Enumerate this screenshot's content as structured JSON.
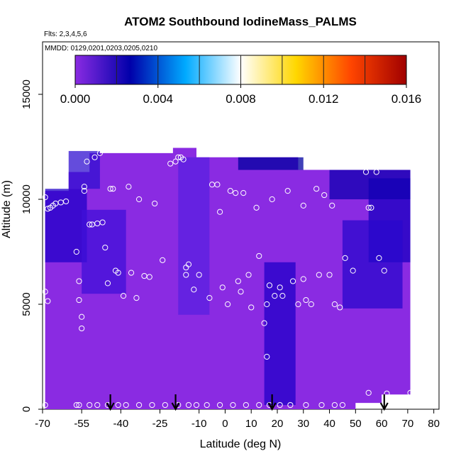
{
  "chart_data": {
    "type": "heatmap",
    "title": "ATOM2 Southbound IodineMass_PALMS",
    "flights_label": "Flts: 2,3,4,5,6",
    "dates_label": "MMDD: 0129,0201,0203,0205,0210",
    "xlabel": "Latitude (deg N)",
    "ylabel": "Altitude (m)",
    "xlim": [
      -70,
      82
    ],
    "ylim": [
      0,
      17500
    ],
    "x_ticks": [
      "-70",
      "-55",
      "-40",
      "-25",
      "-10",
      "0",
      "10",
      "20",
      "30",
      "40",
      "50",
      "60",
      "70",
      "80"
    ],
    "x_tick_values": [
      -70,
      -55,
      -40,
      -25,
      -10,
      0,
      10,
      20,
      30,
      40,
      50,
      60,
      70,
      80
    ],
    "y_ticks": [
      "0",
      "5000",
      "10000",
      "15000"
    ],
    "y_tick_values": [
      0,
      5000,
      10000,
      15000
    ],
    "colorbar": {
      "ticks": [
        "0.000",
        "0.004",
        "0.008",
        "0.012",
        "0.016"
      ],
      "tick_values": [
        0.0,
        0.004,
        0.008,
        0.012,
        0.016
      ],
      "range": [
        0.0,
        0.016
      ],
      "colors": [
        "#8a2be2",
        "#0000aa",
        "#00aaff",
        "#ffffff",
        "#ffd700",
        "#ff4500",
        "#a00000"
      ]
    },
    "field": {
      "background_color": "#8a2be2",
      "regions": [
        {
          "name": "south upper dark",
          "lat": [
            -69,
            -53
          ],
          "alt": [
            7000,
            10500
          ],
          "color": "#2000c8"
        },
        {
          "name": "south upper mid",
          "lat": [
            -60,
            -48
          ],
          "alt": [
            10500,
            12300
          ],
          "color": "#3010d0"
        },
        {
          "name": "south mid dark",
          "lat": [
            -55,
            -38
          ],
          "alt": [
            5500,
            9500
          ],
          "color": "#4010d8"
        },
        {
          "name": "tropical upper dark",
          "lat": [
            -18,
            -6
          ],
          "alt": [
            4500,
            12000
          ],
          "color": "#5820e0"
        },
        {
          "name": "equator dark band",
          "lat": [
            15,
            27
          ],
          "alt": [
            200,
            7000
          ],
          "color": "#2000c8"
        },
        {
          "name": "north upper dark",
          "lat": [
            55,
            71
          ],
          "alt": [
            7000,
            11000
          ],
          "color": "#1a00c0"
        },
        {
          "name": "north mid dark",
          "lat": [
            45,
            68
          ],
          "alt": [
            4800,
            9000
          ],
          "color": "#2a08cc"
        },
        {
          "name": "north top",
          "lat": [
            40,
            71
          ],
          "alt": [
            10000,
            11400
          ],
          "color": "#1000b0"
        },
        {
          "name": "subtropical top",
          "lat": [
            5,
            30
          ],
          "alt": [
            11400,
            12000
          ],
          "color": "#0000a0"
        }
      ]
    },
    "observations": [
      [
        -69,
        10100
      ],
      [
        -69,
        5600
      ],
      [
        -68,
        5150
      ],
      [
        -68,
        9550
      ],
      [
        -67,
        9600
      ],
      [
        -66,
        9700
      ],
      [
        -65,
        9800
      ],
      [
        -63,
        9850
      ],
      [
        -61,
        9900
      ],
      [
        -57,
        7500
      ],
      [
        -56,
        6100
      ],
      [
        -56,
        5200
      ],
      [
        -55,
        4400
      ],
      [
        -55,
        3850
      ],
      [
        -54,
        10600
      ],
      [
        -54,
        10400
      ],
      [
        -53,
        11800
      ],
      [
        -52,
        8800
      ],
      [
        -51,
        8800
      ],
      [
        -50,
        12000
      ],
      [
        -49,
        8850
      ],
      [
        -48,
        12200
      ],
      [
        -47,
        8900
      ],
      [
        -46,
        7700
      ],
      [
        -45,
        6000
      ],
      [
        -44,
        10500
      ],
      [
        -43,
        10500
      ],
      [
        -42,
        6600
      ],
      [
        -41,
        6500
      ],
      [
        -39,
        5400
      ],
      [
        -37,
        10600
      ],
      [
        -36,
        6500
      ],
      [
        -34,
        5300
      ],
      [
        -33,
        10000
      ],
      [
        -31,
        6350
      ],
      [
        -29,
        6300
      ],
      [
        -27,
        9800
      ],
      [
        -24,
        7100
      ],
      [
        -21,
        11700
      ],
      [
        -19,
        11800
      ],
      [
        -18,
        12000
      ],
      [
        -17,
        12000
      ],
      [
        -16,
        11900
      ],
      [
        -15,
        6400
      ],
      [
        -15,
        6750
      ],
      [
        -14,
        6900
      ],
      [
        -12,
        5700
      ],
      [
        -10,
        6400
      ],
      [
        -6,
        5300
      ],
      [
        -5,
        10700
      ],
      [
        -3,
        10700
      ],
      [
        -2,
        9400
      ],
      [
        -1,
        5800
      ],
      [
        1,
        5000
      ],
      [
        2,
        10400
      ],
      [
        4,
        10300
      ],
      [
        5,
        6100
      ],
      [
        6,
        5600
      ],
      [
        7,
        10300
      ],
      [
        9,
        6400
      ],
      [
        10,
        4850
      ],
      [
        12,
        9600
      ],
      [
        13,
        7300
      ],
      [
        15,
        4100
      ],
      [
        16,
        2500
      ],
      [
        16,
        5000
      ],
      [
        17,
        5900
      ],
      [
        18,
        10000
      ],
      [
        19,
        5400
      ],
      [
        21,
        5800
      ],
      [
        22,
        5400
      ],
      [
        24,
        10400
      ],
      [
        26,
        6100
      ],
      [
        28,
        5000
      ],
      [
        30,
        9700
      ],
      [
        30,
        6200
      ],
      [
        31,
        5200
      ],
      [
        33,
        5000
      ],
      [
        35,
        10500
      ],
      [
        36,
        6400
      ],
      [
        38,
        10200
      ],
      [
        40,
        6400
      ],
      [
        41,
        9700
      ],
      [
        42,
        5000
      ],
      [
        44,
        4850
      ],
      [
        46,
        7200
      ],
      [
        49,
        6600
      ],
      [
        54,
        11300
      ],
      [
        55,
        9600
      ],
      [
        56,
        9600
      ],
      [
        58,
        11300
      ],
      [
        59,
        7200
      ],
      [
        61,
        6600
      ],
      [
        62,
        750
      ],
      [
        -69,
        200
      ],
      [
        -57,
        200
      ],
      [
        -56,
        200
      ],
      [
        -52,
        200
      ],
      [
        -49,
        200
      ],
      [
        -45,
        200
      ],
      [
        -41,
        200
      ],
      [
        -38,
        200
      ],
      [
        -33,
        200
      ],
      [
        -28,
        200
      ],
      [
        -23,
        200
      ],
      [
        -18,
        200
      ],
      [
        -14,
        200
      ],
      [
        -11,
        200
      ],
      [
        -7,
        200
      ],
      [
        -2,
        200
      ],
      [
        3,
        200
      ],
      [
        8,
        200
      ],
      [
        13,
        200
      ],
      [
        17,
        200
      ],
      [
        21,
        200
      ],
      [
        25,
        200
      ],
      [
        31,
        200
      ],
      [
        37,
        200
      ],
      [
        42,
        200
      ],
      [
        45,
        200
      ],
      [
        55,
        780
      ],
      [
        71,
        780
      ]
    ],
    "arrows": [
      {
        "lat": -44,
        "label": "flight turn"
      },
      {
        "lat": -19,
        "label": "flight turn"
      },
      {
        "lat": 18,
        "label": "flight turn"
      },
      {
        "lat": 61,
        "label": "flight turn"
      }
    ]
  }
}
